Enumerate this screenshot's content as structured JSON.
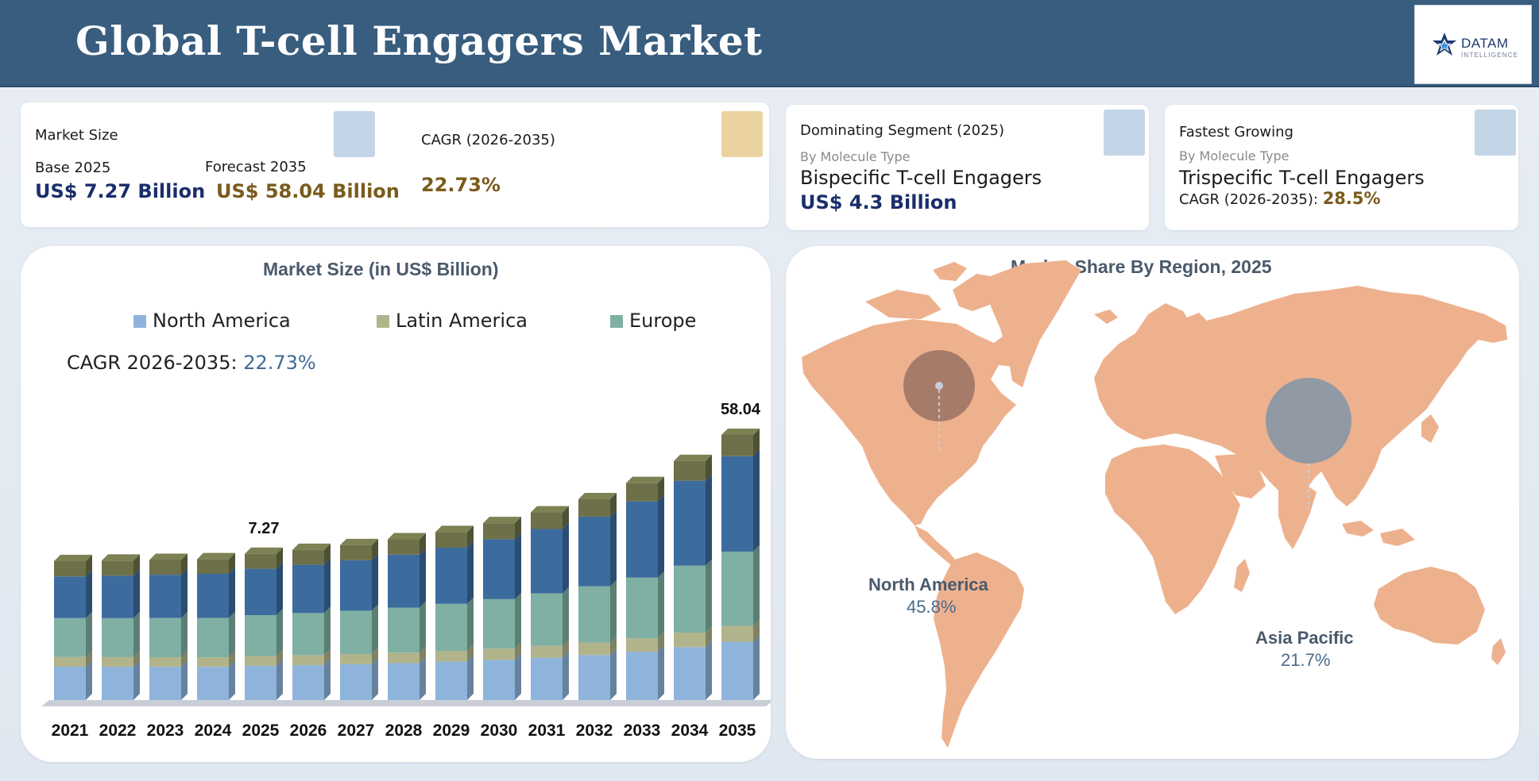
{
  "header": {
    "title": "Global T-cell Engagers Market"
  },
  "logo": {
    "name": "DATAM",
    "sub": "INTELLIGENCE"
  },
  "market_size": {
    "heading": "Market Size",
    "base_label": "Base 2025",
    "base_value": "US$ 7.27 Billion",
    "forecast_label": "Forecast 2035",
    "forecast_value": "US$ 58.04 Billion"
  },
  "cagr_card": {
    "heading": "CAGR (2026-2035)",
    "value": "22.73%"
  },
  "dominating": {
    "heading": "Dominating Segment  (2025)",
    "sub": "By Molecule Type",
    "segment": "Bispecific T-cell Engagers",
    "value": "US$ 4.3 Billion"
  },
  "fastest": {
    "heading": "Fastest Growing",
    "sub": "By Molecule Type",
    "segment": "Trispecific T-cell Engagers",
    "cagr_label": "CAGR (2026-2035): ",
    "cagr_value": "28.5%"
  },
  "colors": {
    "square_blue": "#c3d5e6",
    "square_gold": "#ead3a0",
    "north_america": "#8fb4db",
    "latin_america": "#b1b48a",
    "europe": "#7fb0a3",
    "top_segment": "#6d7048",
    "upper_blue": "#3c6b9e",
    "map": "#eeb18e"
  },
  "chart_data": {
    "type": "bar",
    "stacked": true,
    "title": "Market Size (in US$ Billion)",
    "cagr_label": "CAGR 2026-2035: ",
    "cagr_value": "22.73%",
    "legend": [
      "North America",
      "Latin America",
      "Europe"
    ],
    "legend_position": "top",
    "categories": [
      "2021",
      "2022",
      "2023",
      "2024",
      "2025",
      "2026",
      "2027",
      "2028",
      "2029",
      "2030",
      "2031",
      "2032",
      "2033",
      "2034",
      "2035"
    ],
    "totals": [
      4.2,
      4.4,
      4.7,
      5.0,
      7.27,
      9.0,
      11.0,
      13.5,
      16.6,
      20.4,
      25.0,
      30.6,
      37.5,
      46.9,
      58.04
    ],
    "data_labels": [
      {
        "index": 4,
        "text": "7.27"
      },
      {
        "index": 14,
        "text": "58.04"
      }
    ]
  },
  "map_panel": {
    "title": "Market Share By Region, 2025",
    "regions": [
      {
        "name": "North America",
        "value": "45.8%"
      },
      {
        "name": "Asia Pacific",
        "value": "21.7%"
      }
    ]
  }
}
